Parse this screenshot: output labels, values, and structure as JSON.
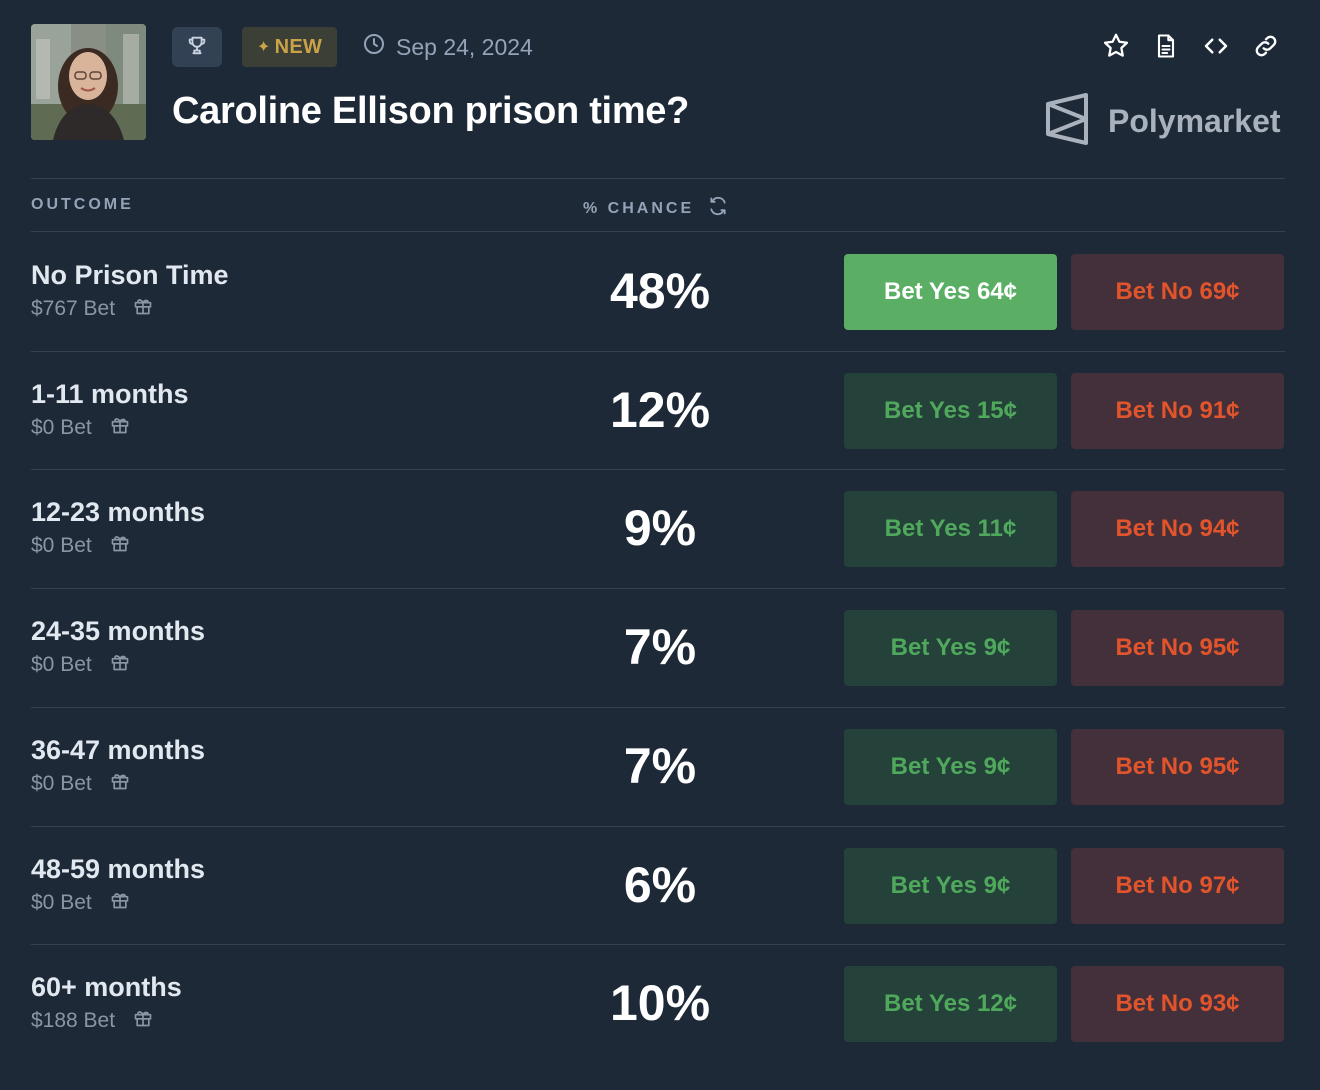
{
  "header": {
    "badge_new": "NEW",
    "date": "Sep 24, 2024",
    "title": "Caroline Ellison prison time?",
    "brand": "Polymarket"
  },
  "icons": {
    "trophy": "trophy-icon",
    "clock": "clock-icon",
    "star": "star-icon",
    "document": "document-icon",
    "code": "code-icon",
    "link": "link-icon",
    "refresh": "refresh-icon",
    "gift": "gift-icon"
  },
  "table": {
    "col_outcome": "OUTCOME",
    "col_chance": "% CHANCE",
    "rows": [
      {
        "name": "No Prison Time",
        "bet": "$767 Bet",
        "chance": "48%",
        "yes": "Bet Yes 64¢",
        "no": "Bet No 69¢",
        "active": true
      },
      {
        "name": "1-11 months",
        "bet": "$0 Bet",
        "chance": "12%",
        "yes": "Bet Yes 15¢",
        "no": "Bet No 91¢",
        "active": false
      },
      {
        "name": "12-23 months",
        "bet": "$0 Bet",
        "chance": "9%",
        "yes": "Bet Yes 11¢",
        "no": "Bet No 94¢",
        "active": false
      },
      {
        "name": "24-35 months",
        "bet": "$0 Bet",
        "chance": "7%",
        "yes": "Bet Yes 9¢",
        "no": "Bet No 95¢",
        "active": false
      },
      {
        "name": "36-47 months",
        "bet": "$0 Bet",
        "chance": "7%",
        "yes": "Bet Yes 9¢",
        "no": "Bet No 95¢",
        "active": false
      },
      {
        "name": "48-59 months",
        "bet": "$0 Bet",
        "chance": "6%",
        "yes": "Bet Yes 9¢",
        "no": "Bet No 97¢",
        "active": false
      },
      {
        "name": "60+ months",
        "bet": "$188 Bet",
        "chance": "10%",
        "yes": "Bet Yes 12¢",
        "no": "Bet No 93¢",
        "active": false
      }
    ]
  },
  "colors": {
    "background": "#1e2937",
    "yes_active": "#5aaf64",
    "yes_text": "#4fa85c",
    "no_text": "#e2542b",
    "new_badge": "#c9a24a"
  }
}
